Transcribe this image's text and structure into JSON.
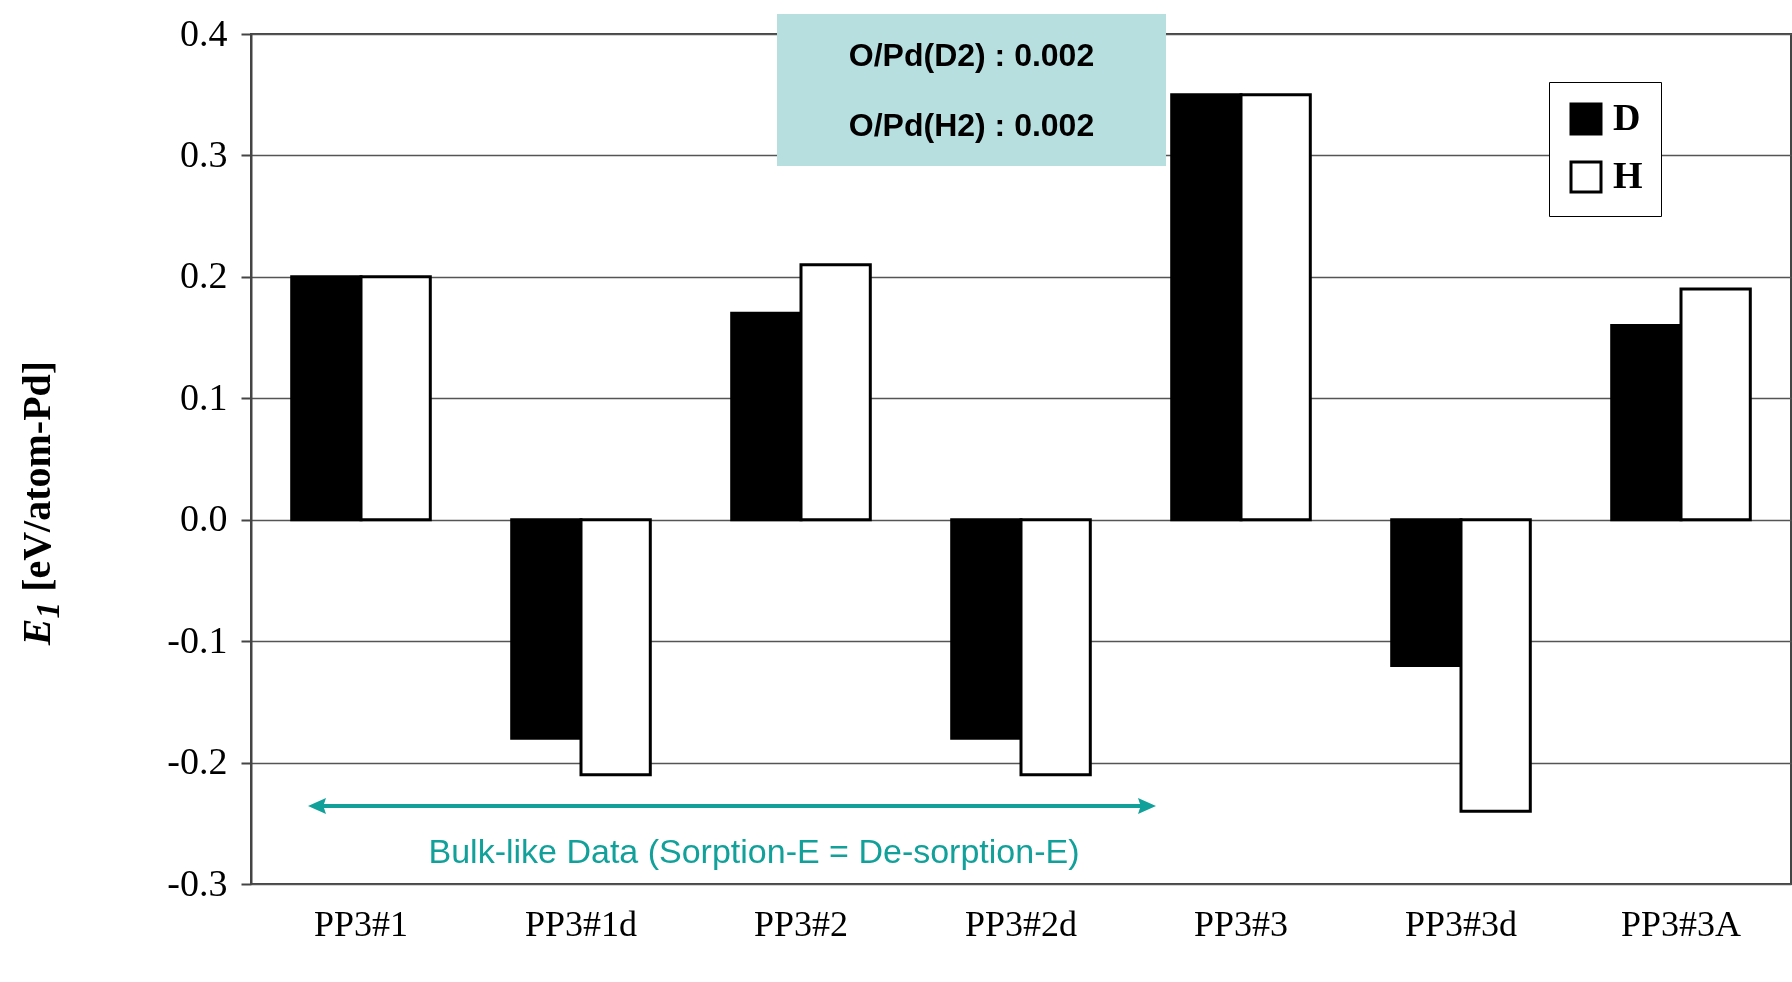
{
  "chart_data": {
    "type": "bar",
    "ylabel": "E$_{1}$ [eV/atom-Pd]",
    "categories": [
      "PP3#1",
      "PP3#1d",
      "PP3#2",
      "PP3#2d",
      "PP3#3",
      "PP3#3d",
      "PP3#3A"
    ],
    "series": [
      {
        "name": "D",
        "color": "#000000",
        "values": [
          0.2,
          -0.18,
          0.17,
          -0.18,
          0.35,
          -0.12,
          0.16
        ]
      },
      {
        "name": "H",
        "color": "#ffffff",
        "values": [
          0.2,
          -0.21,
          0.21,
          -0.21,
          0.35,
          -0.24,
          0.19
        ]
      }
    ],
    "ylim": [
      -0.3,
      0.4
    ],
    "yticks": [
      -0.3,
      -0.2,
      -0.1,
      {
        "value": 0,
        "label": "0.0"
      },
      0.1,
      0.2,
      0.3,
      0.4
    ],
    "grid": "y",
    "legend": "top right",
    "annotations": [
      "O/Pd(D2) : 0.002",
      "O/Pd(H2) : 0.002",
      "Bulk-like Data (Sorption-E = De-sorption-E)"
    ]
  }
}
